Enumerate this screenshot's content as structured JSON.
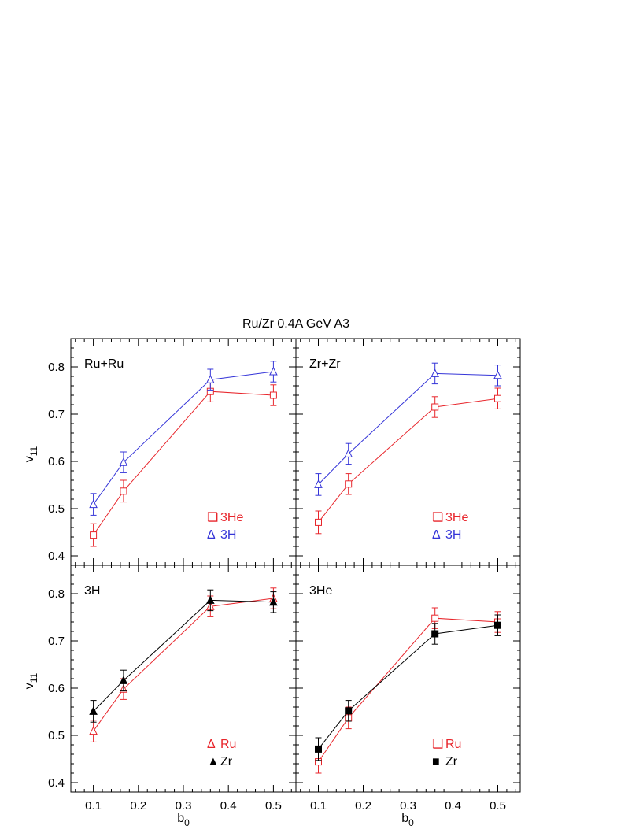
{
  "figure": {
    "title": "Ru/Zr 0.4A GeV A3",
    "xlabel": "b",
    "xlabel_sub": "0",
    "ylabel": "v",
    "ylabel_sub": "11"
  },
  "colors": {
    "red": "#e8262c",
    "blue": "#3535d8",
    "black": "#000000"
  },
  "chart_data": [
    {
      "type": "line",
      "panel_label": "Ru+Ru",
      "xlim": [
        0.05,
        0.55
      ],
      "ylim": [
        0.38,
        0.86
      ],
      "x": [
        0.1,
        0.167,
        0.36,
        0.5
      ],
      "series": [
        {
          "name": "3He",
          "marker": "square-open",
          "color": "red",
          "values": [
            0.444,
            0.537,
            0.748,
            0.74
          ],
          "errors": [
            0.024,
            0.023,
            0.022,
            0.022
          ]
        },
        {
          "name": "3H",
          "marker": "triangle-open",
          "color": "blue",
          "values": [
            0.509,
            0.598,
            0.773,
            0.79
          ],
          "errors": [
            0.023,
            0.022,
            0.022,
            0.022
          ]
        }
      ],
      "legend": [
        {
          "symbol": "❑",
          "label": "3He",
          "color": "red"
        },
        {
          "symbol": "Δ",
          "label": "3H",
          "color": "blue"
        }
      ]
    },
    {
      "type": "line",
      "panel_label": "Zr+Zr",
      "xlim": [
        0.05,
        0.55
      ],
      "ylim": [
        0.38,
        0.86
      ],
      "x": [
        0.1,
        0.167,
        0.36,
        0.5
      ],
      "series": [
        {
          "name": "3He",
          "marker": "square-open",
          "color": "red",
          "values": [
            0.471,
            0.552,
            0.715,
            0.733
          ],
          "errors": [
            0.024,
            0.022,
            0.022,
            0.022
          ]
        },
        {
          "name": "3H",
          "marker": "triangle-open",
          "color": "blue",
          "values": [
            0.551,
            0.616,
            0.786,
            0.782
          ],
          "errors": [
            0.023,
            0.022,
            0.022,
            0.022
          ]
        }
      ],
      "legend": [
        {
          "symbol": "❑",
          "label": "3He",
          "color": "red"
        },
        {
          "symbol": "Δ",
          "label": "3H",
          "color": "blue"
        }
      ]
    },
    {
      "type": "line",
      "panel_label": "3H",
      "xlim": [
        0.05,
        0.55
      ],
      "ylim": [
        0.38,
        0.86
      ],
      "x": [
        0.1,
        0.167,
        0.36,
        0.5
      ],
      "series": [
        {
          "name": "Ru",
          "marker": "triangle-open",
          "color": "red",
          "values": [
            0.509,
            0.598,
            0.773,
            0.79
          ],
          "errors": [
            0.023,
            0.022,
            0.022,
            0.022
          ]
        },
        {
          "name": "Zr",
          "marker": "triangle-filled",
          "color": "black",
          "values": [
            0.551,
            0.616,
            0.786,
            0.782
          ],
          "errors": [
            0.023,
            0.022,
            0.022,
            0.022
          ]
        }
      ],
      "legend": [
        {
          "symbol": "Δ",
          "label": "Ru",
          "color": "red"
        },
        {
          "symbol": "▲",
          "label": "Zr",
          "color": "black"
        }
      ]
    },
    {
      "type": "line",
      "panel_label": "3He",
      "xlim": [
        0.05,
        0.55
      ],
      "ylim": [
        0.38,
        0.86
      ],
      "x": [
        0.1,
        0.167,
        0.36,
        0.5
      ],
      "series": [
        {
          "name": "Ru",
          "marker": "square-open",
          "color": "red",
          "values": [
            0.444,
            0.537,
            0.748,
            0.74
          ],
          "errors": [
            0.024,
            0.023,
            0.022,
            0.022
          ]
        },
        {
          "name": "Zr",
          "marker": "square-filled",
          "color": "black",
          "values": [
            0.471,
            0.552,
            0.715,
            0.733
          ],
          "errors": [
            0.024,
            0.022,
            0.022,
            0.022
          ]
        }
      ],
      "legend": [
        {
          "symbol": "❑",
          "label": "Ru",
          "color": "red"
        },
        {
          "symbol": "■",
          "label": "Zr",
          "color": "black"
        }
      ]
    }
  ],
  "axes": {
    "yticks": [
      0.4,
      0.5,
      0.6,
      0.7,
      0.8
    ],
    "ytick_labels": [
      "0.4",
      "0.5",
      "0.6",
      "0.7",
      "0.8"
    ],
    "xticks": [
      0.1,
      0.2,
      0.3,
      0.4,
      0.5
    ],
    "xtick_labels": [
      "0.1",
      "0.2",
      "0.3",
      "0.4",
      "0.5"
    ]
  }
}
